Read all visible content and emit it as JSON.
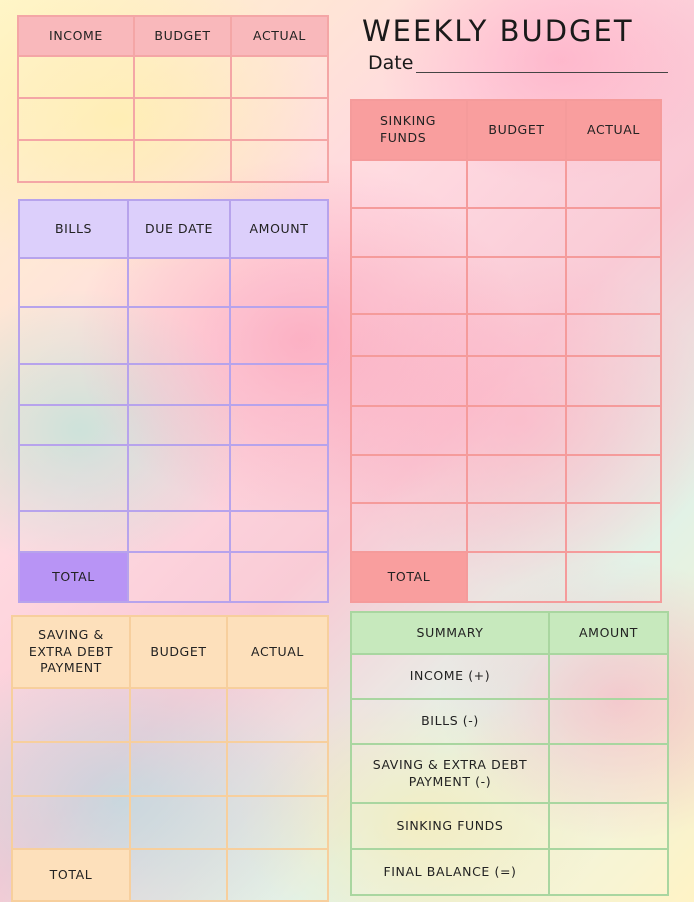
{
  "page": {
    "title": "WEEKLY BUDGET",
    "date_label": "Date"
  },
  "income": {
    "headers": [
      "INCOME",
      "BUDGET",
      "ACTUAL"
    ],
    "rows": 3
  },
  "bills": {
    "headers": [
      "BILLS",
      "DUE DATE",
      "AMOUNT"
    ],
    "total_label": "TOTAL"
  },
  "sinking": {
    "headers": [
      "SINKING FUNDS",
      "BUDGET",
      "ACTUAL"
    ],
    "total_label": "TOTAL"
  },
  "saving": {
    "headers": [
      "SAVING & EXTRA DEBT PAYMENT",
      "BUDGET",
      "ACTUAL"
    ],
    "total_label": "TOTAL"
  },
  "summary": {
    "headers": [
      "SUMMARY",
      "AMOUNT"
    ],
    "rows": [
      "INCOME (+)",
      "BILLS (-)",
      "SAVING & EXTRA DEBT PAYMENT (-)",
      "SINKING FUNDS",
      "FINAL BALANCE (=)"
    ]
  },
  "colors": {
    "income": "#f9b8bb",
    "bills": "#dccffb",
    "bills_total": "#b894f5",
    "sinking": "#f99e9e",
    "saving": "#fde0bb",
    "summary": "#c7e9bd"
  }
}
